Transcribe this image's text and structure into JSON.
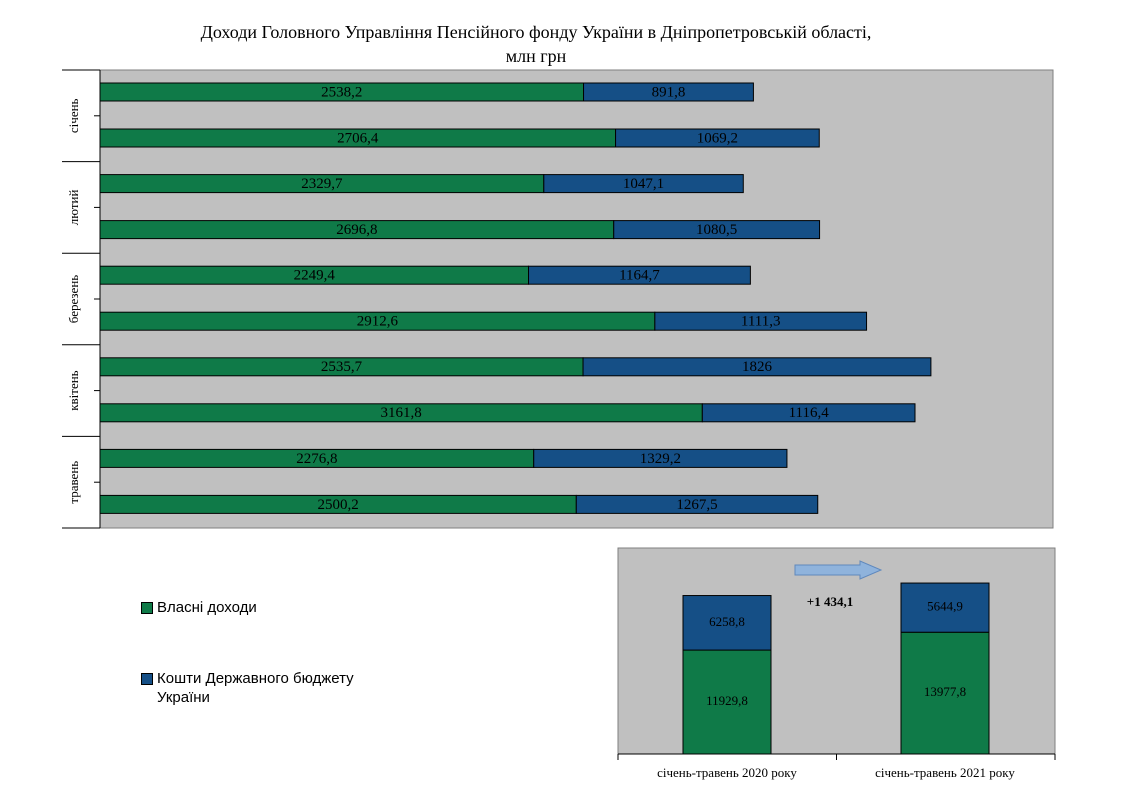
{
  "title_line1": "Доходи Головного Управління Пенсійного фонду України в Дніпропетровській області,",
  "title_line2": "млн грн",
  "colors": {
    "own": "#0f7a48",
    "budget": "#154f86",
    "plot_bg": "#c0c0c0"
  },
  "legend": [
    {
      "label": "Власні доходи",
      "color": "#0f7a48"
    },
    {
      "label": "Кошти Державного бюджету України",
      "color": "#154f86"
    }
  ],
  "chart_data": [
    {
      "type": "bar",
      "orientation": "horizontal",
      "stacked": true,
      "categories": [
        "січень",
        "лютий",
        "березень",
        "квітень",
        "травень"
      ],
      "series": [
        {
          "name": "Власні доходи",
          "values_2020": [
            2538.2,
            2329.7,
            2249.4,
            2535.7,
            2276.8
          ],
          "values_2021": [
            2706.4,
            2696.8,
            2912.6,
            3161.8,
            2500.2
          ]
        },
        {
          "name": "Кошти Державного бюджету України",
          "values_2020": [
            891.8,
            1047.1,
            1164.7,
            1826,
            1329.2
          ],
          "values_2021": [
            1069.2,
            1080.5,
            1111.3,
            1116.4,
            1267.5
          ]
        }
      ],
      "labels_own_2020": [
        "2538,2",
        "2329,7",
        "2249,4",
        "2535,7",
        "2276,8"
      ],
      "labels_own_2021": [
        "2706,4",
        "2696,8",
        "2912,6",
        "3161,8",
        "2500,2"
      ],
      "labels_budget_2020": [
        "891,8",
        "1047,1",
        "1164,7",
        "1826",
        "1329,2"
      ],
      "labels_budget_2021": [
        "1069,2",
        "1080,5",
        "1111,3",
        "1116,4",
        "1267,5"
      ],
      "xlim": [
        0,
        5000
      ],
      "grid": false
    },
    {
      "type": "bar",
      "stacked": true,
      "categories": [
        "січень-травень 2020 року",
        "січень-травень 2021 року"
      ],
      "series": [
        {
          "name": "Власні доходи",
          "values": [
            11929.8,
            13977.8
          ],
          "labels": [
            "11929,8",
            "13977,8"
          ]
        },
        {
          "name": "Кошти Державного бюджету України",
          "values": [
            6258.8,
            5644.9
          ],
          "labels": [
            "6258,8",
            "5644,9"
          ]
        }
      ],
      "annotation": "+1 434,1",
      "ylim": [
        0,
        23000
      ],
      "grid": false
    }
  ]
}
